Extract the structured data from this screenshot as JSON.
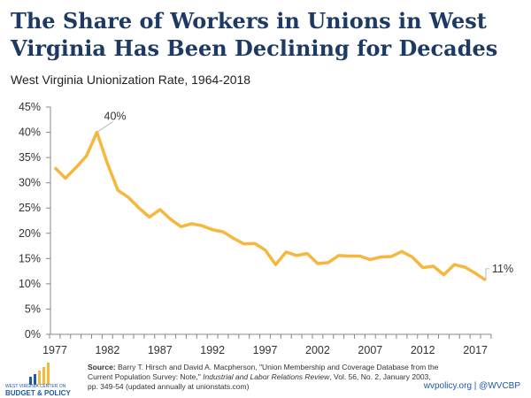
{
  "title": "The Share of Workers in Unions in West Virginia Has Been Declining for Decades",
  "subtitle": "West Virginia Unionization Rate, 1964-2018",
  "colors": {
    "title": "#1c3a63",
    "line": "#f5b83d",
    "logo_blue": "#1c5aa6",
    "logo_yellow": "#f5b83d"
  },
  "chart_data": {
    "type": "line",
    "title": "West Virginia Unionization Rate, 1964-2018",
    "xlabel": "",
    "ylabel": "",
    "xlim": [
      1977,
      2018
    ],
    "ylim": [
      0,
      45
    ],
    "grid": false,
    "x_tick_labels": [
      "1977",
      "1982",
      "1987",
      "1992",
      "1997",
      "2002",
      "2007",
      "2012",
      "2017"
    ],
    "y_tick_labels": [
      "0%",
      "5%",
      "10%",
      "15%",
      "20%",
      "25%",
      "30%",
      "35%",
      "40%",
      "45%"
    ],
    "x": [
      1977,
      1978,
      1979,
      1980,
      1981,
      1982,
      1983,
      1984,
      1985,
      1986,
      1987,
      1988,
      1989,
      1990,
      1991,
      1992,
      1993,
      1994,
      1995,
      1996,
      1997,
      1998,
      1999,
      2000,
      2001,
      2002,
      2003,
      2004,
      2005,
      2006,
      2007,
      2008,
      2009,
      2010,
      2011,
      2012,
      2013,
      2014,
      2015,
      2016,
      2017,
      2018
    ],
    "values": [
      33.0,
      30.9,
      33.0,
      35.3,
      40.0,
      33.8,
      28.5,
      27.1,
      25.0,
      23.2,
      24.7,
      22.8,
      21.3,
      21.9,
      21.5,
      20.7,
      20.3,
      19.0,
      17.9,
      18.0,
      16.7,
      13.8,
      16.3,
      15.6,
      16.0,
      14.0,
      14.2,
      15.6,
      15.5,
      15.5,
      14.8,
      15.3,
      15.4,
      16.4,
      15.3,
      13.2,
      13.5,
      11.8,
      13.8,
      13.3,
      12.1,
      10.7
    ],
    "annotations": [
      {
        "x": 1981,
        "label": "40%"
      },
      {
        "x": 2018,
        "label": "11%"
      }
    ]
  },
  "footer": {
    "source_label": "Source:",
    "source_text": " Barry T. Hirsch and David A. Macpherson, \"Union Membership and Coverage Database from the Current Population Survey: Note,\" ",
    "source_journal": "Industrial and Labor Relations Review",
    "source_rest": ", Vol. 56, No. 2, January 2003, pp. 349-54 (updated annually at unionstats.com)",
    "credit": "wvpolicy.org  |  @WVCBP",
    "logo_line1": "WEST VIRGINIA CENTER ON",
    "logo_line2": "BUDGET & POLICY"
  }
}
